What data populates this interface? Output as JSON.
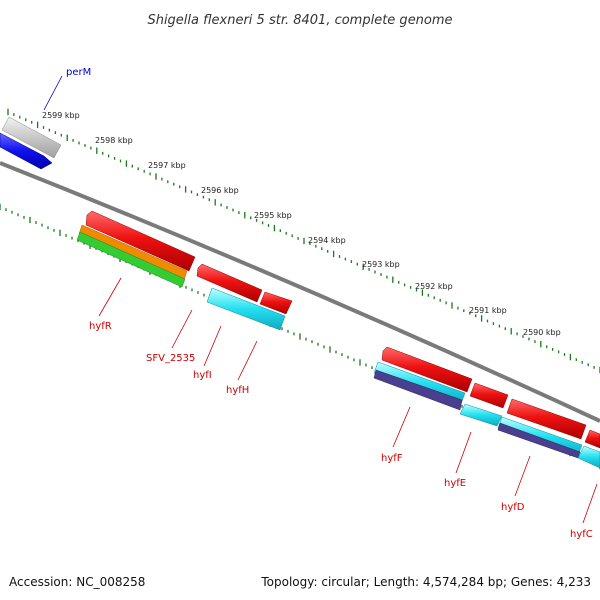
{
  "title": "Shigella flexneri 5 str. 8401, complete genome",
  "footer": {
    "accession": "Accession: NC_008258",
    "summary": "Topology: circular; Length: 4,574,284 bp; Genes: 4,233"
  },
  "colors": {
    "backbone": "#808080",
    "tick": "#1a7a1a",
    "label_red": "#cc0000",
    "label_blue": "#0000cc"
  },
  "ruler": [
    {
      "label": "2599 kbp"
    },
    {
      "label": "2598 kbp"
    },
    {
      "label": "2597 kbp"
    },
    {
      "label": "2596 kbp"
    },
    {
      "label": "2595 kbp"
    },
    {
      "label": "2594 kbp"
    },
    {
      "label": "2593 kbp"
    },
    {
      "label": "2592 kbp"
    },
    {
      "label": "2591 kbp"
    },
    {
      "label": "2590 kbp"
    }
  ],
  "labels": [
    {
      "text": "perM",
      "color": "#0000cc"
    },
    {
      "text": "hyfR",
      "color": "#cc0000"
    },
    {
      "text": "SFV_2535",
      "color": "#cc0000"
    },
    {
      "text": "hyfI",
      "color": "#cc0000"
    },
    {
      "text": "hyfH",
      "color": "#cc0000"
    },
    {
      "text": "hyfF",
      "color": "#cc0000"
    },
    {
      "text": "hyfE",
      "color": "#cc0000"
    },
    {
      "text": "hyfD",
      "color": "#cc0000"
    },
    {
      "text": "hyfC",
      "color": "#cc0000"
    }
  ]
}
